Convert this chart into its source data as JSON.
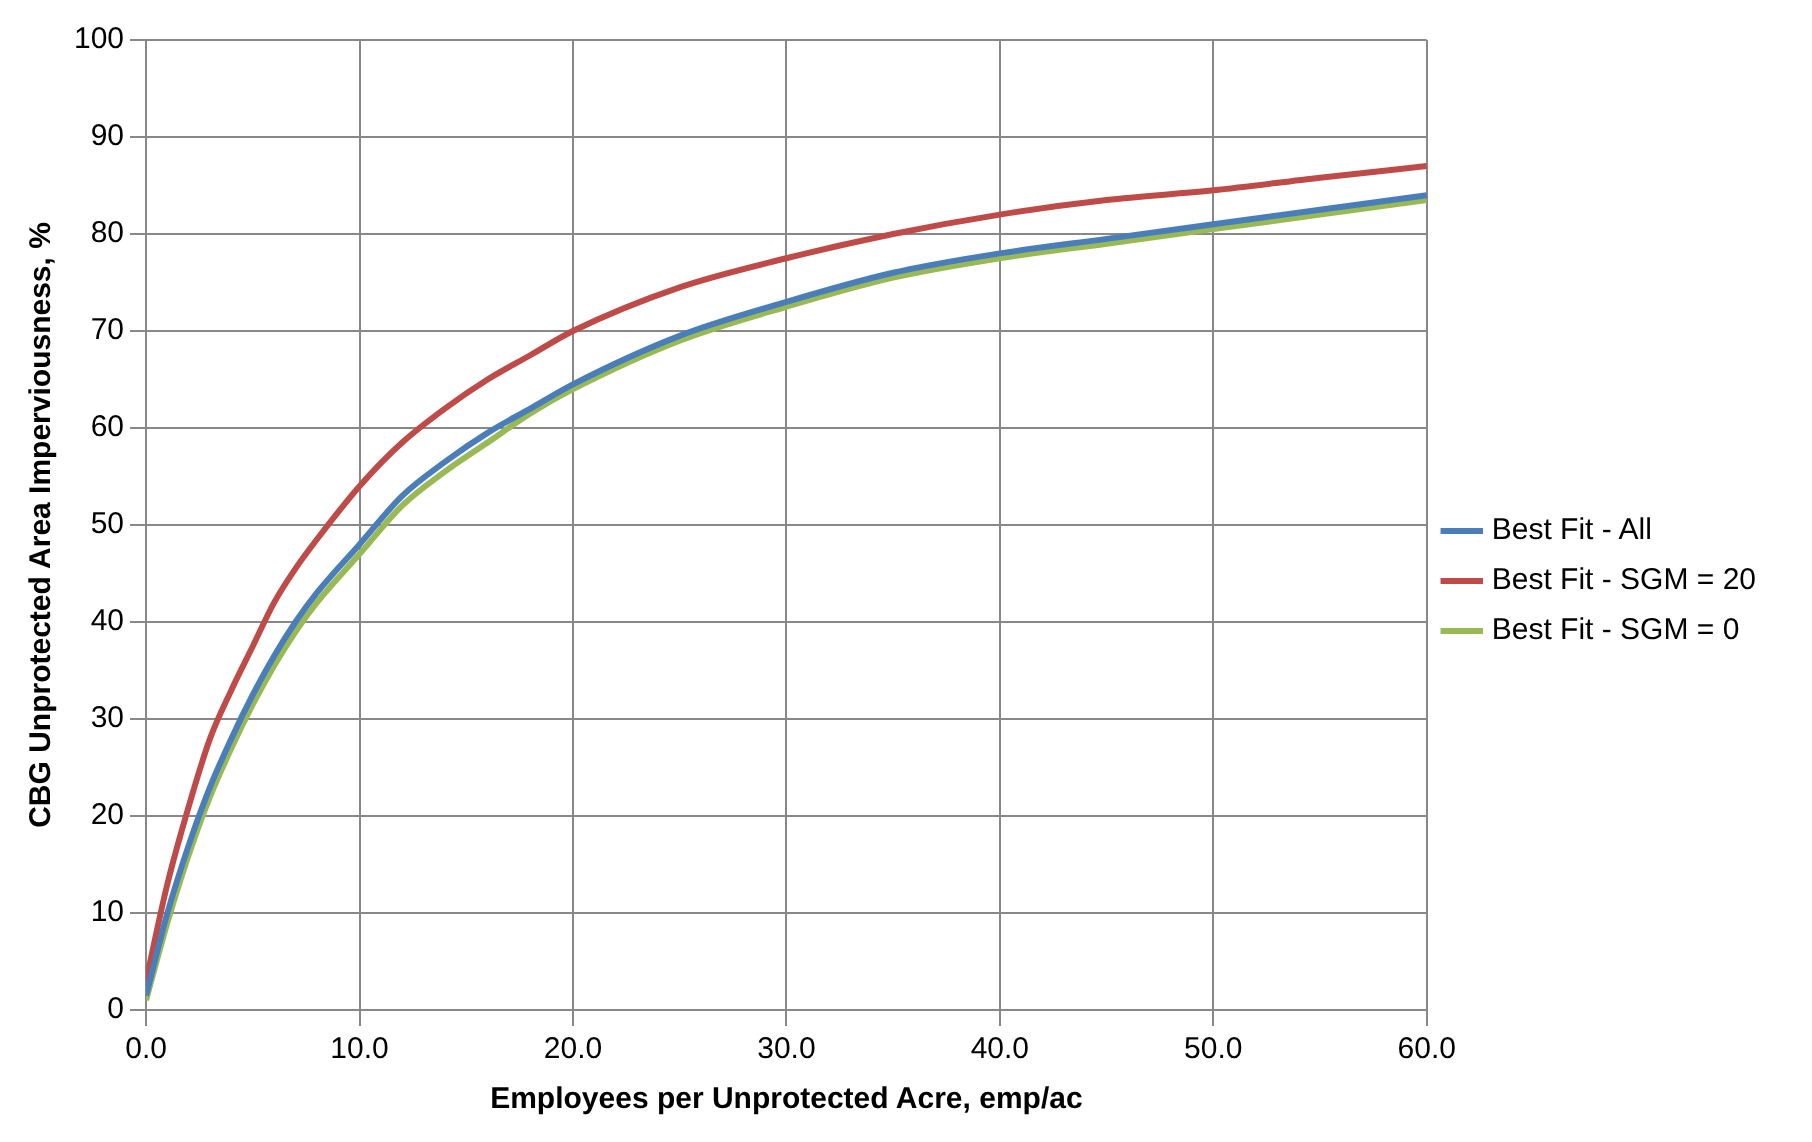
{
  "chart_data": {
    "type": "line",
    "xlabel": "Employees per Unprotected Acre, emp/ac",
    "ylabel": "CBG Unprotected Area Imperviousness, %",
    "x": [
      0,
      1,
      2,
      3,
      4,
      5,
      6,
      7,
      8,
      10,
      12,
      14,
      16,
      18,
      20,
      25,
      30,
      35,
      40,
      45,
      50,
      55,
      60
    ],
    "series": [
      {
        "name": "Best Fit - All",
        "color": "#4a7ebb",
        "values": [
          1.5,
          10,
          17,
          23,
          28,
          32.5,
          36.5,
          40,
          43,
          48,
          53,
          56.5,
          59.5,
          62,
          64.5,
          69.5,
          73,
          76,
          78,
          79.5,
          81,
          82.5,
          84
        ]
      },
      {
        "name": "Best Fit - SGM = 20",
        "color": "#be4b48",
        "values": [
          3,
          13,
          21,
          28,
          33,
          37.5,
          42,
          45.5,
          48.5,
          54,
          58.5,
          62,
          65,
          67.5,
          70,
          74.5,
          77.5,
          80,
          82,
          83.5,
          84.5,
          85.8,
          87
        ]
      },
      {
        "name": "Best Fit - SGM = 0",
        "color": "#98b954",
        "values": [
          1,
          9,
          16,
          22,
          27,
          31.5,
          35.5,
          39,
          42,
          47,
          52,
          55.5,
          58.5,
          61.5,
          64,
          69,
          72.5,
          75.5,
          77.5,
          79,
          80.5,
          82,
          83.5
        ]
      }
    ],
    "xlim": [
      0,
      60
    ],
    "xticks": [
      {
        "value": 0,
        "label": "0.0"
      },
      {
        "value": 10,
        "label": "10.0"
      },
      {
        "value": 20,
        "label": "20.0"
      },
      {
        "value": 30,
        "label": "30.0"
      },
      {
        "value": 40,
        "label": "40.0"
      },
      {
        "value": 50,
        "label": "50.0"
      },
      {
        "value": 60,
        "label": "60.0"
      }
    ],
    "ylim": [
      0,
      100
    ],
    "yticks": [
      0,
      10,
      20,
      30,
      40,
      50,
      60,
      70,
      80,
      90,
      100
    ],
    "grid": true,
    "legend": "right",
    "marker": "none",
    "line_style": "solid"
  }
}
